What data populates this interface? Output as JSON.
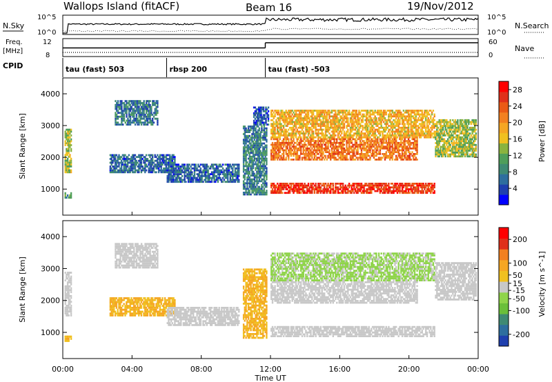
{
  "header": {
    "title": "Wallops Island (fitACF)",
    "beam": "Beam 16",
    "date": "19/Nov/2012"
  },
  "top_panels": {
    "nsky_label": "N.Sky",
    "nsearch_label": "N.Search",
    "noise_ticks": [
      "10^5",
      "10^0"
    ],
    "freq_label": "Freq.",
    "freq_unit": "[MHz]",
    "freq_ticks": [
      "12",
      "8"
    ],
    "nave_label": "Nave",
    "nave_ticks": [
      "60",
      "0"
    ],
    "cpid_label": "CPID",
    "cpid_segments": [
      {
        "label": "tau (fast) 503",
        "start_hour": 0,
        "end_hour": 6
      },
      {
        "label": "rbsp 200",
        "start_hour": 6,
        "end_hour": 11.7
      },
      {
        "label": "tau (fast) -503",
        "start_hour": 11.7,
        "end_hour": 24
      }
    ],
    "freq_series": [
      {
        "start_hour": 0,
        "end_hour": 11.7,
        "value_mhz": 10.5
      },
      {
        "start_hour": 11.7,
        "end_hour": 24,
        "value_mhz": 12.0
      }
    ]
  },
  "colors": {
    "power_scale": [
      "#0000ff",
      "#1f3fae",
      "#2e6e9e",
      "#3f8a73",
      "#4f9e5a",
      "#8ab33f",
      "#f0c020",
      "#f5a623",
      "#f28020",
      "#ea5a15",
      "#e0301a",
      "#ff0000"
    ],
    "velocity_scale": [
      "#1f3fae",
      "#2e6e9e",
      "#3f8a73",
      "#6abf3a",
      "#8fd44a",
      "#c8c8c8",
      "#f0c020",
      "#f5a623",
      "#f28020",
      "#e0301a",
      "#ff0000"
    ]
  },
  "chart_data": [
    {
      "type": "heatmap",
      "title": "",
      "xlabel": "Time UT",
      "ylabel": "Slant Range [km]",
      "x_ticks": [
        "00:00",
        "04:00",
        "08:00",
        "12:00",
        "16:00",
        "20:00",
        "00:00"
      ],
      "x_range_hours": [
        0,
        24
      ],
      "y_ticks": [
        1000,
        2000,
        3000,
        4000
      ],
      "ylim": [
        180,
        4500
      ],
      "colorbar": {
        "label": "Power [dB]",
        "ticks": [
          4,
          8,
          12,
          16,
          20,
          24,
          28
        ],
        "range": [
          0,
          30
        ]
      },
      "regions": [
        {
          "t": [
            0.1,
            0.5
          ],
          "r": [
            1500,
            2900
          ],
          "value": 14
        },
        {
          "t": [
            0.1,
            0.5
          ],
          "r": [
            700,
            900
          ],
          "value": 10
        },
        {
          "t": [
            3.0,
            5.5
          ],
          "r": [
            3000,
            3800
          ],
          "value": 7
        },
        {
          "t": [
            2.7,
            6.5
          ],
          "r": [
            1500,
            2100
          ],
          "value": 6
        },
        {
          "t": [
            6.0,
            10.2
          ],
          "r": [
            1200,
            1800
          ],
          "value": 6
        },
        {
          "t": [
            10.4,
            11.8
          ],
          "r": [
            800,
            3000
          ],
          "value": 8
        },
        {
          "t": [
            11.0,
            11.9
          ],
          "r": [
            3000,
            3600
          ],
          "value": 5
        },
        {
          "t": [
            12.0,
            21.5
          ],
          "r": [
            850,
            1200
          ],
          "value": 26
        },
        {
          "t": [
            12.0,
            20.5
          ],
          "r": [
            1900,
            2600
          ],
          "value": 22
        },
        {
          "t": [
            12.0,
            21.5
          ],
          "r": [
            2600,
            3500
          ],
          "value": 18
        },
        {
          "t": [
            21.5,
            23.9
          ],
          "r": [
            2000,
            3200
          ],
          "value": 14
        }
      ]
    },
    {
      "type": "heatmap",
      "title": "",
      "xlabel": "Time UT",
      "ylabel": "Slant Range [km]",
      "x_ticks": [
        "00:00",
        "04:00",
        "08:00",
        "12:00",
        "16:00",
        "20:00",
        "00:00"
      ],
      "x_range_hours": [
        0,
        24
      ],
      "y_ticks": [
        1000,
        2000,
        3000,
        4000
      ],
      "ylim": [
        180,
        4500
      ],
      "colorbar": {
        "label": "Velocity [m s^-1]",
        "ticks": [
          200,
          100,
          50,
          15,
          -15,
          -50,
          -100,
          -200
        ],
        "range": [
          -250,
          250
        ]
      },
      "regions": [
        {
          "t": [
            0.1,
            0.5
          ],
          "r": [
            700,
            900
          ],
          "value": 60
        },
        {
          "t": [
            0.1,
            0.5
          ],
          "r": [
            1500,
            2900
          ],
          "value": 0
        },
        {
          "t": [
            3.0,
            5.5
          ],
          "r": [
            3000,
            3800
          ],
          "value": 0
        },
        {
          "t": [
            2.7,
            6.5
          ],
          "r": [
            1500,
            2100
          ],
          "value": 70
        },
        {
          "t": [
            6.0,
            10.2
          ],
          "r": [
            1200,
            1800
          ],
          "value": 0
        },
        {
          "t": [
            10.4,
            11.8
          ],
          "r": [
            800,
            3000
          ],
          "value": 70
        },
        {
          "t": [
            12.0,
            21.5
          ],
          "r": [
            850,
            1200
          ],
          "value": 0
        },
        {
          "t": [
            12.0,
            20.5
          ],
          "r": [
            1900,
            2600
          ],
          "value": 0
        },
        {
          "t": [
            12.0,
            21.5
          ],
          "r": [
            2600,
            3500
          ],
          "value": -30
        },
        {
          "t": [
            21.5,
            23.9
          ],
          "r": [
            2000,
            3200
          ],
          "value": 0
        }
      ]
    }
  ]
}
